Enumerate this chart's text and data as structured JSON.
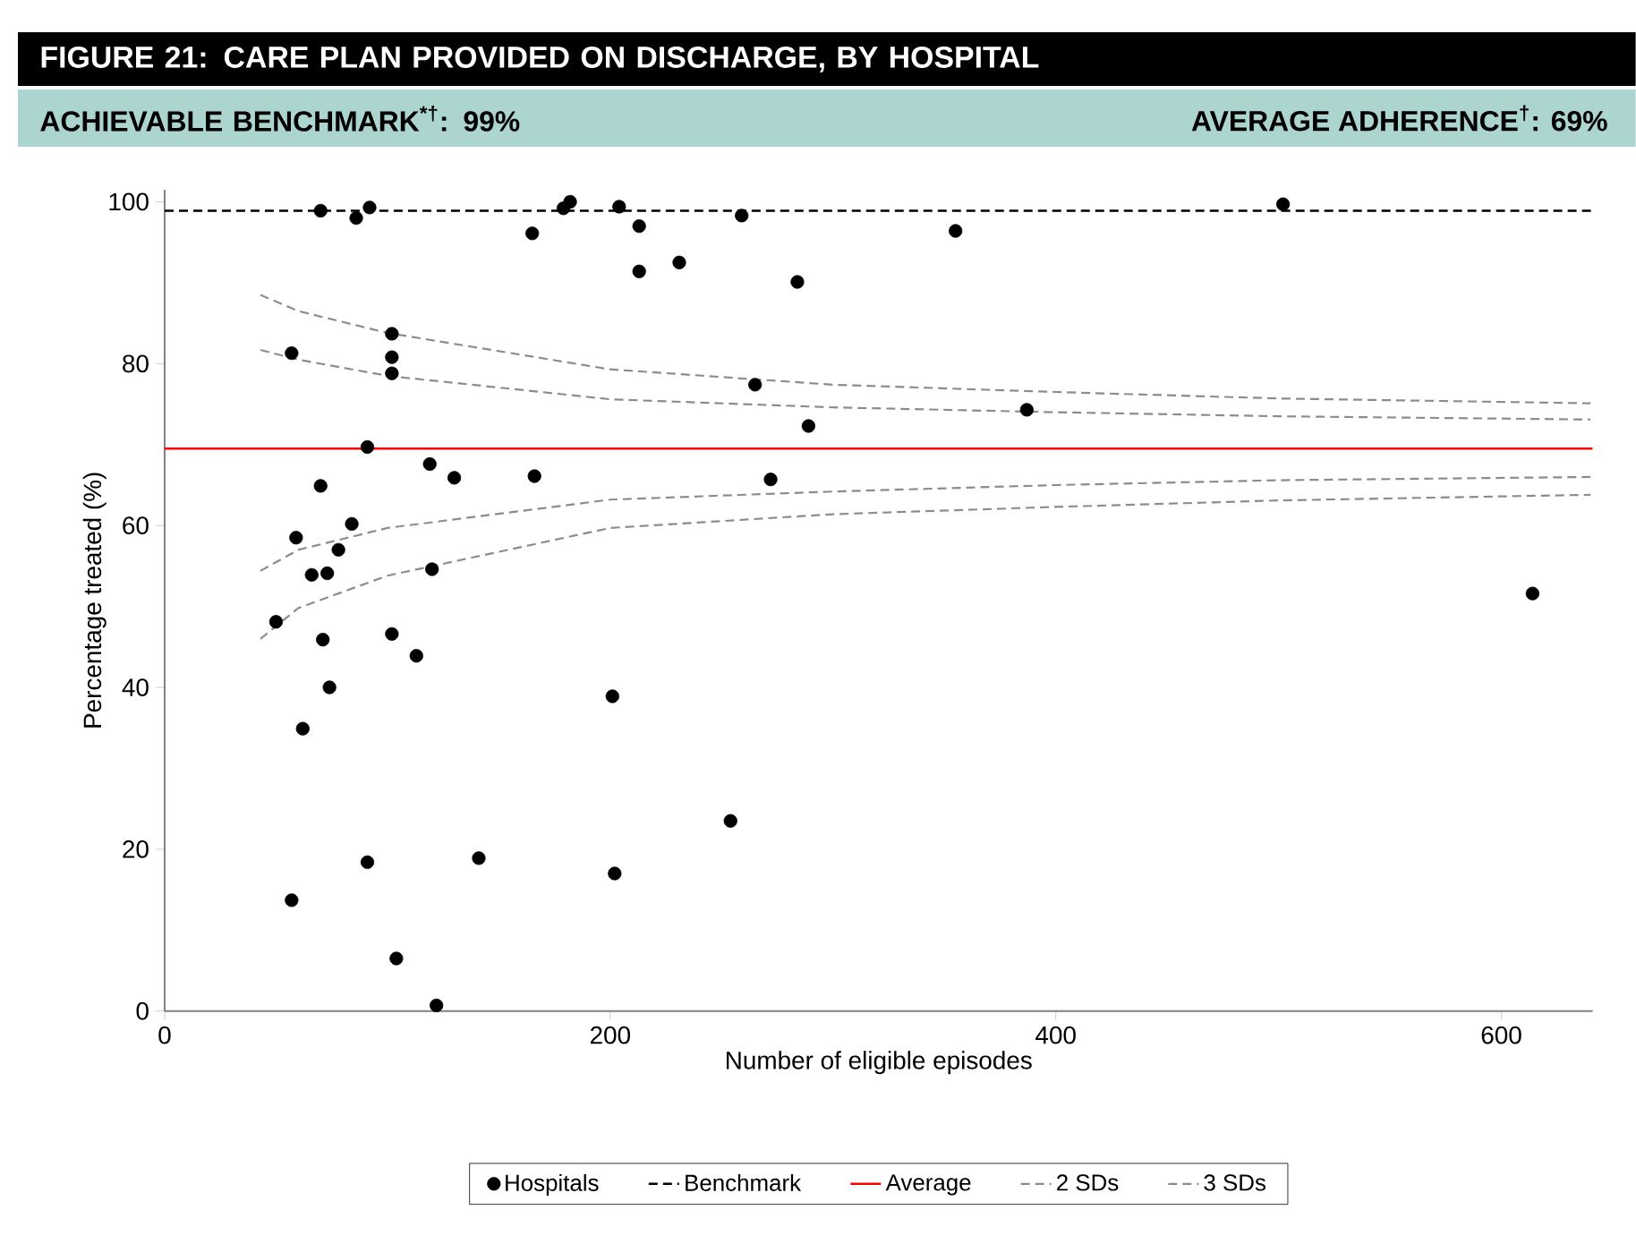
{
  "chart_data": {
    "type": "scatter",
    "title": "FIGURE 21: CARE PLAN PROVIDED ON DISCHARGE, BY HOSPITAL",
    "subtitle": "ACHIEVABLE BENCHMARK$^{*†}$: 99%",
    "annotations": [
      "AVERAGE ADHERENCE$^{†}$: 69%"
    ],
    "xlabel": "Number of eligible episodes",
    "ylabel": "Percentage treated (%)",
    "xlim": [
      0,
      641
    ],
    "ylim": [
      0,
      101.5
    ],
    "xticks": [
      0,
      200,
      400,
      600
    ],
    "yticks": [
      0,
      20,
      40,
      60,
      80,
      100
    ],
    "legend": "bottom",
    "grid": false,
    "series": [
      {
        "name": "Hospitals",
        "marker": "circle",
        "color": "#000000",
        "x": [
          50,
          57,
          57,
          59,
          62,
          66,
          70,
          70,
          71,
          73,
          74,
          78,
          84,
          86,
          91,
          91,
          92,
          102,
          102,
          102,
          102,
          104,
          113,
          119,
          120,
          122,
          130,
          141,
          165,
          166,
          179,
          182,
          201,
          202,
          204,
          213,
          213,
          231,
          254,
          259,
          265,
          272,
          284,
          289,
          355,
          387,
          502,
          614
        ],
        "values": [
          48.1,
          13.7,
          81.3,
          58.5,
          34.9,
          53.9,
          64.9,
          98.9,
          45.9,
          54.1,
          40.0,
          57.0,
          60.2,
          98.0,
          69.7,
          18.4,
          99.3,
          83.7,
          80.8,
          78.8,
          46.6,
          6.5,
          43.9,
          67.6,
          54.6,
          0.7,
          65.9,
          18.9,
          96.1,
          66.1,
          99.2,
          100.0,
          38.9,
          17.0,
          99.4,
          97.0,
          91.4,
          92.5,
          23.5,
          98.3,
          77.4,
          65.7,
          90.1,
          72.3,
          96.4,
          74.3,
          99.7,
          51.6
        ]
      },
      {
        "name": "2 SDs",
        "type": "line",
        "marker": "none",
        "line_style": "dashed",
        "color": "#8c8c8c",
        "x": [
          43,
          60,
          100,
          200,
          300,
          400,
          500,
          640
        ],
        "values": [
          81.7,
          80.5,
          78.5,
          75.6,
          74.6,
          74.0,
          73.5,
          73.1
        ]
      },
      {
        "name": "3 SDs",
        "type": "line",
        "marker": "none",
        "line_style": "dashed",
        "color": "#8c8c8c",
        "x": [
          43,
          60,
          100,
          200,
          300,
          400,
          500,
          640
        ],
        "values": [
          88.5,
          86.5,
          83.8,
          79.3,
          77.4,
          76.5,
          75.7,
          75.1
        ]
      },
      {
        "type": "line",
        "marker": "none",
        "line_style": "dashed",
        "color": "#8c8c8c",
        "x": [
          43,
          60,
          100,
          200,
          300,
          400,
          500,
          640
        ],
        "values": [
          54.4,
          57.0,
          59.7,
          63.2,
          64.2,
          65.0,
          65.6,
          66.0
        ]
      },
      {
        "type": "line",
        "marker": "none",
        "line_style": "dashed",
        "color": "#8c8c8c",
        "x": [
          43,
          60,
          100,
          200,
          300,
          400,
          500,
          640
        ],
        "values": [
          46.0,
          49.8,
          53.8,
          59.7,
          61.4,
          62.3,
          63.1,
          63.8
        ]
      }
    ],
    "ref_lines": [
      {
        "axis": "y",
        "value": 98.9,
        "label": "Benchmark",
        "color": "#000000",
        "line_style": "dashed"
      },
      {
        "axis": "y",
        "value": 69.5,
        "label": "Average",
        "color": "#ff0000",
        "line_style": "solid"
      }
    ]
  }
}
